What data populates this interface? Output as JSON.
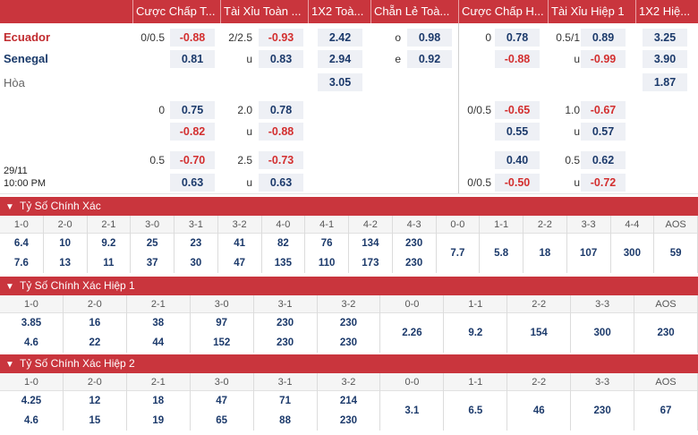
{
  "headers": [
    "Cược Chấp T...",
    "Tài Xỉu Toàn ...",
    "1X2 Toà...",
    "Chẵn Lẻ Toà...",
    "Cược Chấp H...",
    "Tài Xỉu Hiệp 1",
    "1X2 Hiệ..."
  ],
  "match": {
    "home": "Ecuador",
    "away": "Senegal",
    "draw": "Hòa",
    "date": "29/11",
    "time": "10:00 PM"
  },
  "colors": {
    "header_bg": "#c9353d",
    "negative": "#d32f2f",
    "positive": "#1c3a6b",
    "cell_bg": "#eef0f5"
  },
  "rows": [
    {
      "hc": "0/0.5",
      "ah": "-0.88",
      "ou_line": "2/2.5",
      "ou": "-0.93",
      "x12": "2.42",
      "oe_label": "o",
      "oe": "0.98",
      "hc_h1": "0",
      "ah_h1": "0.78",
      "ou_h1_line": "0.5/1",
      "ou_h1": "0.89",
      "x12_h1": "3.25"
    },
    {
      "hc": "",
      "ah": "0.81",
      "ou_line": "u",
      "ou": "0.83",
      "x12": "2.94",
      "oe_label": "e",
      "oe": "0.92",
      "hc_h1": "",
      "ah_h1": "-0.88",
      "ou_h1_line": "u",
      "ou_h1": "-0.99",
      "x12_h1": "3.90"
    },
    {
      "x12": "3.05",
      "x12_h1": "1.87"
    },
    {
      "hc": "0",
      "ah": "0.75",
      "ou_line": "2.0",
      "ou": "0.78",
      "hc_h1": "0/0.5",
      "ah_h1": "-0.65",
      "ou_h1_line": "1.0",
      "ou_h1": "-0.67"
    },
    {
      "hc": "",
      "ah": "-0.82",
      "ou_line": "u",
      "ou": "-0.88",
      "hc_h1": "",
      "ah_h1": "0.55",
      "ou_h1_line": "u",
      "ou_h1": "0.57"
    },
    {
      "hc": "0.5",
      "ah": "-0.70",
      "ou_line": "2.5",
      "ou": "-0.73",
      "hc_h1": "",
      "ah_h1": "0.40",
      "ou_h1_line": "0.5",
      "ou_h1": "0.62"
    },
    {
      "hc": "",
      "ah": "0.63",
      "ou_line": "u",
      "ou": "0.63",
      "hc_h1": "0/0.5",
      "ah_h1": "-0.50",
      "ou_h1_line": "u",
      "ou_h1": "-0.72"
    }
  ],
  "sections": [
    {
      "title": "Tỷ Số Chính Xác",
      "scores": [
        {
          "label": "1-0",
          "home": "6.4",
          "away": "7.6"
        },
        {
          "label": "2-0",
          "home": "10",
          "away": "13"
        },
        {
          "label": "2-1",
          "home": "9.2",
          "away": "11"
        },
        {
          "label": "3-0",
          "home": "25",
          "away": "37"
        },
        {
          "label": "3-1",
          "home": "23",
          "away": "30"
        },
        {
          "label": "3-2",
          "home": "41",
          "away": "47"
        },
        {
          "label": "4-0",
          "home": "82",
          "away": "135"
        },
        {
          "label": "4-1",
          "home": "76",
          "away": "110"
        },
        {
          "label": "4-2",
          "home": "134",
          "away": "173"
        },
        {
          "label": "4-3",
          "home": "230",
          "away": "230"
        },
        {
          "label": "0-0",
          "mid": "7.7"
        },
        {
          "label": "1-1",
          "mid": "5.8"
        },
        {
          "label": "2-2",
          "mid": "18"
        },
        {
          "label": "3-3",
          "mid": "107"
        },
        {
          "label": "4-4",
          "mid": "300"
        },
        {
          "label": "AOS",
          "mid": "59"
        }
      ]
    },
    {
      "title": "Tỷ Số Chính Xác Hiệp 1",
      "scores": [
        {
          "label": "1-0",
          "home": "3.85",
          "away": "4.6"
        },
        {
          "label": "2-0",
          "home": "16",
          "away": "22"
        },
        {
          "label": "2-1",
          "home": "38",
          "away": "44"
        },
        {
          "label": "3-0",
          "home": "97",
          "away": "152"
        },
        {
          "label": "3-1",
          "home": "230",
          "away": "230"
        },
        {
          "label": "3-2",
          "home": "230",
          "away": "230"
        },
        {
          "label": "0-0",
          "mid": "2.26"
        },
        {
          "label": "1-1",
          "mid": "9.2"
        },
        {
          "label": "2-2",
          "mid": "154"
        },
        {
          "label": "3-3",
          "mid": "300"
        },
        {
          "label": "AOS",
          "mid": "230"
        }
      ]
    },
    {
      "title": "Tỷ Số Chính Xác Hiệp 2",
      "scores": [
        {
          "label": "1-0",
          "home": "4.25",
          "away": "4.6"
        },
        {
          "label": "2-0",
          "home": "12",
          "away": "15"
        },
        {
          "label": "2-1",
          "home": "18",
          "away": "19"
        },
        {
          "label": "3-0",
          "home": "47",
          "away": "65"
        },
        {
          "label": "3-1",
          "home": "71",
          "away": "88"
        },
        {
          "label": "3-2",
          "home": "214",
          "away": "230"
        },
        {
          "label": "0-0",
          "mid": "3.1"
        },
        {
          "label": "1-1",
          "mid": "6.5"
        },
        {
          "label": "2-2",
          "mid": "46"
        },
        {
          "label": "3-3",
          "mid": "230"
        },
        {
          "label": "AOS",
          "mid": "67"
        }
      ]
    }
  ]
}
